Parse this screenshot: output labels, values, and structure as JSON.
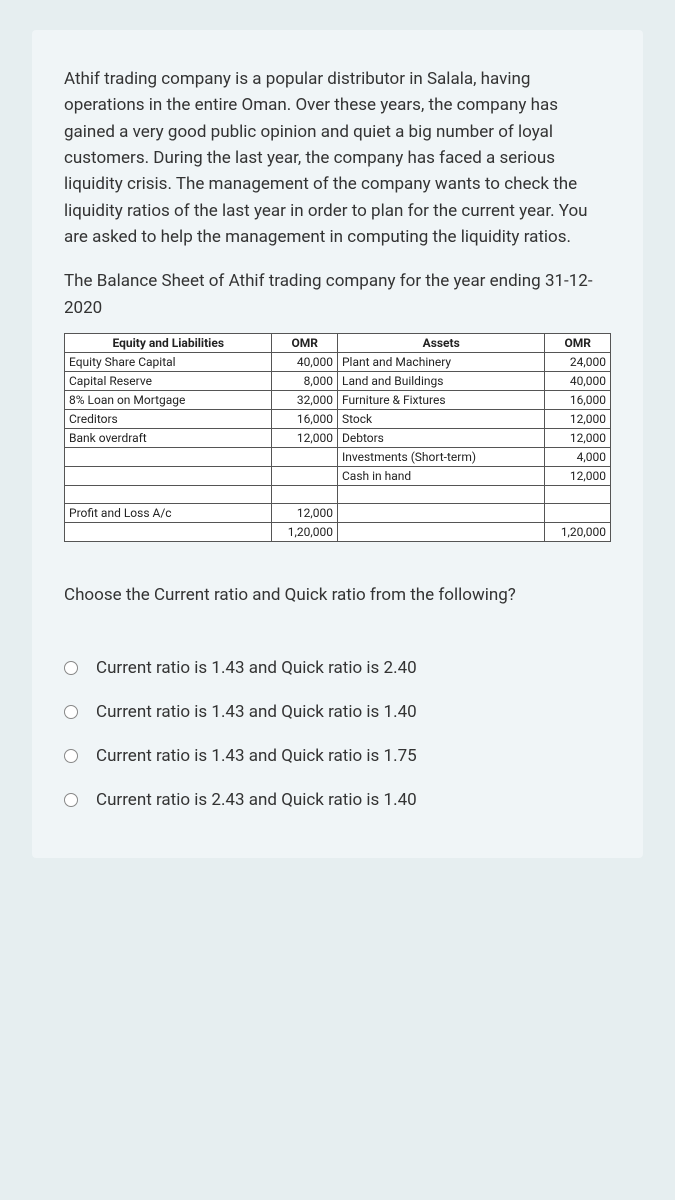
{
  "intro": "Athif trading company is a popular distributor in Salala, having operations in the entire Oman. Over these years, the company has gained a very good public opinion and quiet a big number of loyal customers. During the last year, the company has faced a serious liquidity crisis. The management of the company wants to check the liquidity ratios of the last year in order to plan for the current year. You are asked to help the management in computing the liquidity ratios.",
  "subhead": "The Balance Sheet of Athif trading company for the year ending 31-12-2020",
  "balance": {
    "headers": {
      "eq": "Equity and Liabilities",
      "omr1": "OMR",
      "assets": "Assets",
      "omr2": "OMR"
    },
    "rows": [
      {
        "eq": "Equity Share Capital",
        "omr1": "40,000",
        "assets": "Plant and Machinery",
        "omr2": "24,000"
      },
      {
        "eq": "Capital Reserve",
        "omr1": "8,000",
        "assets": "Land and Buildings",
        "omr2": "40,000"
      },
      {
        "eq": "8% Loan on Mortgage",
        "omr1": "32,000",
        "assets": "Furniture & Fixtures",
        "omr2": "16,000"
      },
      {
        "eq": "Creditors",
        "omr1": "16,000",
        "assets": "Stock",
        "omr2": "12,000"
      },
      {
        "eq": "Bank overdraft",
        "omr1": "12,000",
        "assets": "Debtors",
        "omr2": "12,000"
      },
      {
        "eq": "",
        "omr1": "",
        "assets": "Investments (Short-term)",
        "omr2": "4,000"
      },
      {
        "eq": "",
        "omr1": "",
        "assets": "Cash in hand",
        "omr2": "12,000"
      },
      {
        "eq": "",
        "omr1": "",
        "assets": "",
        "omr2": ""
      },
      {
        "eq": "Profit and Loss A/c",
        "omr1": "12,000",
        "assets": "",
        "omr2": ""
      },
      {
        "eq": "",
        "omr1": "1,20,000",
        "assets": "",
        "omr2": "1,20,000"
      }
    ]
  },
  "question": "Choose the Current ratio and Quick ratio from the following?",
  "options": [
    "Current ratio is 1.43 and Quick ratio is 2.40",
    "Current ratio is 1.43 and Quick ratio is 1.40",
    "Current ratio is 1.43 and Quick ratio is 1.75",
    "Current ratio is 2.43 and Quick ratio is 1.40"
  ]
}
